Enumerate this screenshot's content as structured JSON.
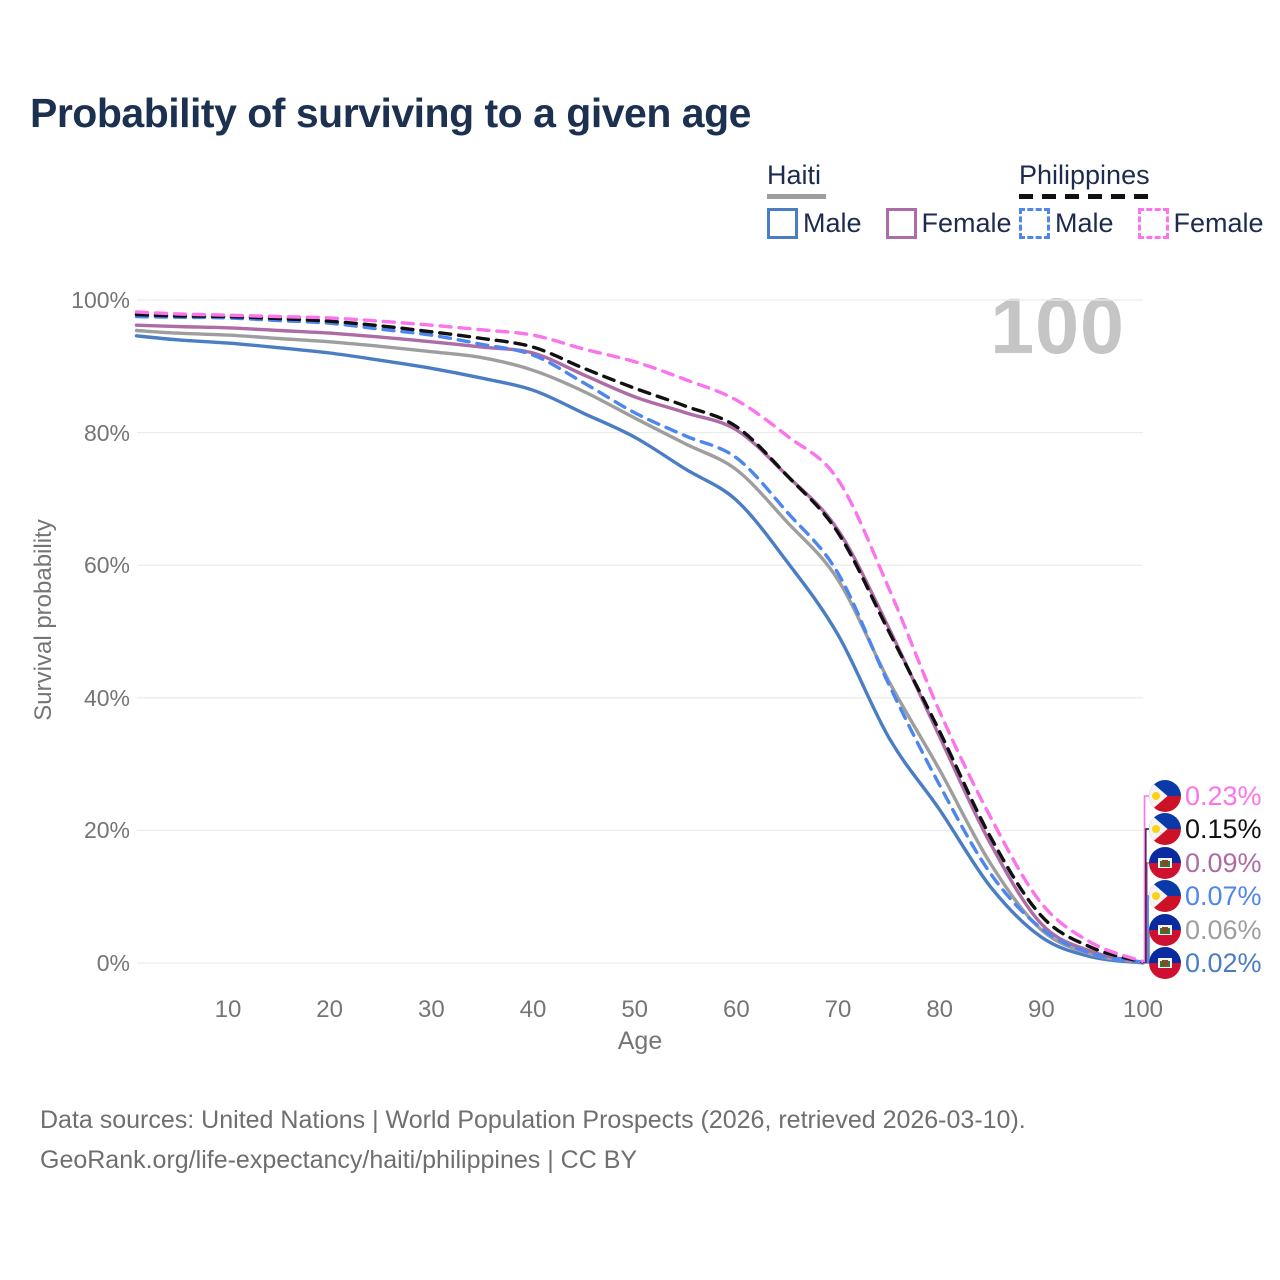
{
  "title": "Probability of surviving to a given age",
  "watermark": "100",
  "legend": {
    "haiti": {
      "label": "Haiti",
      "underline_color": "#9e9e9e",
      "male_label": "Male",
      "female_label": "Female",
      "male_color": "#4a7dc3",
      "female_color": "#ad6ca6"
    },
    "philippines": {
      "label": "Philippines",
      "underline_color": "#111111",
      "male_label": "Male",
      "female_label": "Female",
      "male_color": "#4e86f0",
      "female_color": "#fb74eb"
    }
  },
  "axes": {
    "y_label": "Survival probability",
    "x_label": "Age",
    "y_ticks": [
      "100%",
      "80%",
      "60%",
      "40%",
      "20%",
      "0%"
    ],
    "y_tick_values": [
      100,
      80,
      60,
      40,
      20,
      0
    ],
    "x_ticks": [
      "10",
      "20",
      "30",
      "40",
      "50",
      "60",
      "70",
      "80",
      "90",
      "100"
    ],
    "x_tick_values": [
      10,
      20,
      30,
      40,
      50,
      60,
      70,
      80,
      90,
      100
    ]
  },
  "chart_data": {
    "type": "line",
    "title": "Probability of surviving to a given age",
    "xlabel": "Age",
    "ylabel": "Survival probability",
    "xlim": [
      0,
      100
    ],
    "ylim": [
      0,
      100
    ],
    "grid": "horizontal",
    "legend_position": "top-right",
    "x": [
      1,
      5,
      10,
      15,
      20,
      25,
      30,
      35,
      40,
      45,
      50,
      55,
      60,
      65,
      70,
      75,
      80,
      85,
      90,
      95,
      100
    ],
    "series": [
      {
        "name": "Haiti Male",
        "country": "Haiti",
        "sex": "Male",
        "color": "#4a7dc3",
        "dashed": false,
        "end_row": 5,
        "values": [
          94.6,
          94.0,
          93.5,
          92.8,
          92.0,
          90.9,
          89.7,
          88.2,
          86.4,
          82.9,
          79.3,
          74.5,
          69.8,
          60.5,
          49.5,
          34.0,
          23.1,
          11.5,
          3.9,
          0.9,
          0.02
        ]
      },
      {
        "name": "Haiti Both sexes",
        "country": "Haiti",
        "sex": "Both",
        "color": "#9e9e9e",
        "dashed": false,
        "end_row": 4,
        "values": [
          95.4,
          95.0,
          94.7,
          94.2,
          93.7,
          93.0,
          92.2,
          91.3,
          89.4,
          86.2,
          82.2,
          78.3,
          74.4,
          66.5,
          57.8,
          42.5,
          29.1,
          15.0,
          5.0,
          1.3,
          0.06
        ]
      },
      {
        "name": "Haiti Female",
        "country": "Haiti",
        "sex": "Female",
        "color": "#ad6ca6",
        "dashed": false,
        "end_row": 2,
        "values": [
          96.2,
          96.0,
          95.8,
          95.4,
          95.0,
          94.4,
          93.7,
          92.9,
          92.0,
          88.7,
          85.4,
          83.0,
          80.4,
          73.5,
          65.3,
          50.5,
          34.1,
          18.0,
          5.9,
          1.7,
          0.09
        ]
      },
      {
        "name": "Philippines Male",
        "country": "Philippines",
        "sex": "Male",
        "color": "#4e86f0",
        "dashed": true,
        "end_row": 3,
        "values": [
          97.5,
          97.4,
          97.3,
          96.9,
          96.5,
          95.6,
          94.7,
          93.3,
          91.7,
          87.5,
          83.0,
          79.5,
          76.2,
          68.0,
          58.8,
          42.0,
          26.8,
          13.5,
          5.2,
          1.4,
          0.07
        ]
      },
      {
        "name": "Philippines Both sexes",
        "country": "Philippines",
        "sex": "Both",
        "color": "#111111",
        "dashed": true,
        "end_row": 1,
        "values": [
          97.8,
          97.6,
          97.5,
          97.2,
          96.8,
          96.1,
          95.2,
          94.2,
          92.9,
          89.7,
          86.7,
          84.0,
          80.9,
          73.5,
          64.9,
          50.0,
          34.9,
          19.0,
          7.1,
          2.3,
          0.15
        ]
      },
      {
        "name": "Philippines Female",
        "country": "Philippines",
        "sex": "Female",
        "color": "#fb74eb",
        "dashed": true,
        "end_row": 0,
        "values": [
          98.2,
          97.9,
          97.7,
          97.5,
          97.3,
          96.8,
          96.2,
          95.5,
          94.7,
          92.6,
          90.7,
          88.0,
          84.9,
          79.5,
          72.9,
          56.5,
          37.9,
          22.0,
          9.0,
          3.0,
          0.23
        ]
      }
    ]
  },
  "end_labels": [
    {
      "flag": "ph",
      "country": "Philippines",
      "value": "0.23%",
      "color": "#fb74eb"
    },
    {
      "flag": "ph",
      "country": "Philippines",
      "value": "0.15%",
      "color": "#111111"
    },
    {
      "flag": "ht",
      "country": "Haiti",
      "value": "0.09%",
      "color": "#ad6ca6"
    },
    {
      "flag": "ph",
      "country": "Philippines",
      "value": "0.07%",
      "color": "#4e86f0"
    },
    {
      "flag": "ht",
      "country": "Haiti",
      "value": "0.06%",
      "color": "#9e9e9e"
    },
    {
      "flag": "ht",
      "country": "Haiti",
      "value": "0.02%",
      "color": "#4a7dc3"
    }
  ],
  "footer": {
    "line1": "Data sources: United Nations | World Population Prospects (2026, retrieved 2026-03-10).",
    "line2": "GeoRank.org/life-expectancy/haiti/philippines | CC BY"
  }
}
